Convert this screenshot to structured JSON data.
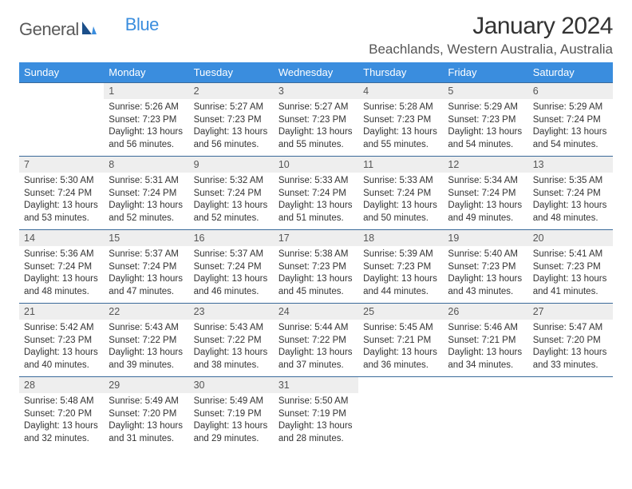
{
  "brand": {
    "part1": "General",
    "part2": "Blue"
  },
  "title": "January 2024",
  "location": "Beachlands, Western Australia, Australia",
  "header_bg": "#3a8dde",
  "days_of_week": [
    "Sunday",
    "Monday",
    "Tuesday",
    "Wednesday",
    "Thursday",
    "Friday",
    "Saturday"
  ],
  "weeks": [
    {
      "nums": [
        "",
        "1",
        "2",
        "3",
        "4",
        "5",
        "6"
      ],
      "cells": [
        null,
        {
          "sunrise": "5:26 AM",
          "sunset": "7:23 PM",
          "daylight": "13 hours and 56 minutes."
        },
        {
          "sunrise": "5:27 AM",
          "sunset": "7:23 PM",
          "daylight": "13 hours and 56 minutes."
        },
        {
          "sunrise": "5:27 AM",
          "sunset": "7:23 PM",
          "daylight": "13 hours and 55 minutes."
        },
        {
          "sunrise": "5:28 AM",
          "sunset": "7:23 PM",
          "daylight": "13 hours and 55 minutes."
        },
        {
          "sunrise": "5:29 AM",
          "sunset": "7:23 PM",
          "daylight": "13 hours and 54 minutes."
        },
        {
          "sunrise": "5:29 AM",
          "sunset": "7:24 PM",
          "daylight": "13 hours and 54 minutes."
        }
      ]
    },
    {
      "nums": [
        "7",
        "8",
        "9",
        "10",
        "11",
        "12",
        "13"
      ],
      "cells": [
        {
          "sunrise": "5:30 AM",
          "sunset": "7:24 PM",
          "daylight": "13 hours and 53 minutes."
        },
        {
          "sunrise": "5:31 AM",
          "sunset": "7:24 PM",
          "daylight": "13 hours and 52 minutes."
        },
        {
          "sunrise": "5:32 AM",
          "sunset": "7:24 PM",
          "daylight": "13 hours and 52 minutes."
        },
        {
          "sunrise": "5:33 AM",
          "sunset": "7:24 PM",
          "daylight": "13 hours and 51 minutes."
        },
        {
          "sunrise": "5:33 AM",
          "sunset": "7:24 PM",
          "daylight": "13 hours and 50 minutes."
        },
        {
          "sunrise": "5:34 AM",
          "sunset": "7:24 PM",
          "daylight": "13 hours and 49 minutes."
        },
        {
          "sunrise": "5:35 AM",
          "sunset": "7:24 PM",
          "daylight": "13 hours and 48 minutes."
        }
      ]
    },
    {
      "nums": [
        "14",
        "15",
        "16",
        "17",
        "18",
        "19",
        "20"
      ],
      "cells": [
        {
          "sunrise": "5:36 AM",
          "sunset": "7:24 PM",
          "daylight": "13 hours and 48 minutes."
        },
        {
          "sunrise": "5:37 AM",
          "sunset": "7:24 PM",
          "daylight": "13 hours and 47 minutes."
        },
        {
          "sunrise": "5:37 AM",
          "sunset": "7:24 PM",
          "daylight": "13 hours and 46 minutes."
        },
        {
          "sunrise": "5:38 AM",
          "sunset": "7:23 PM",
          "daylight": "13 hours and 45 minutes."
        },
        {
          "sunrise": "5:39 AM",
          "sunset": "7:23 PM",
          "daylight": "13 hours and 44 minutes."
        },
        {
          "sunrise": "5:40 AM",
          "sunset": "7:23 PM",
          "daylight": "13 hours and 43 minutes."
        },
        {
          "sunrise": "5:41 AM",
          "sunset": "7:23 PM",
          "daylight": "13 hours and 41 minutes."
        }
      ]
    },
    {
      "nums": [
        "21",
        "22",
        "23",
        "24",
        "25",
        "26",
        "27"
      ],
      "cells": [
        {
          "sunrise": "5:42 AM",
          "sunset": "7:23 PM",
          "daylight": "13 hours and 40 minutes."
        },
        {
          "sunrise": "5:43 AM",
          "sunset": "7:22 PM",
          "daylight": "13 hours and 39 minutes."
        },
        {
          "sunrise": "5:43 AM",
          "sunset": "7:22 PM",
          "daylight": "13 hours and 38 minutes."
        },
        {
          "sunrise": "5:44 AM",
          "sunset": "7:22 PM",
          "daylight": "13 hours and 37 minutes."
        },
        {
          "sunrise": "5:45 AM",
          "sunset": "7:21 PM",
          "daylight": "13 hours and 36 minutes."
        },
        {
          "sunrise": "5:46 AM",
          "sunset": "7:21 PM",
          "daylight": "13 hours and 34 minutes."
        },
        {
          "sunrise": "5:47 AM",
          "sunset": "7:20 PM",
          "daylight": "13 hours and 33 minutes."
        }
      ]
    },
    {
      "nums": [
        "28",
        "29",
        "30",
        "31",
        "",
        "",
        ""
      ],
      "cells": [
        {
          "sunrise": "5:48 AM",
          "sunset": "7:20 PM",
          "daylight": "13 hours and 32 minutes."
        },
        {
          "sunrise": "5:49 AM",
          "sunset": "7:20 PM",
          "daylight": "13 hours and 31 minutes."
        },
        {
          "sunrise": "5:49 AM",
          "sunset": "7:19 PM",
          "daylight": "13 hours and 29 minutes."
        },
        {
          "sunrise": "5:50 AM",
          "sunset": "7:19 PM",
          "daylight": "13 hours and 28 minutes."
        },
        null,
        null,
        null
      ]
    }
  ],
  "labels": {
    "sunrise": "Sunrise: ",
    "sunset": "Sunset: ",
    "daylight": "Daylight: "
  }
}
